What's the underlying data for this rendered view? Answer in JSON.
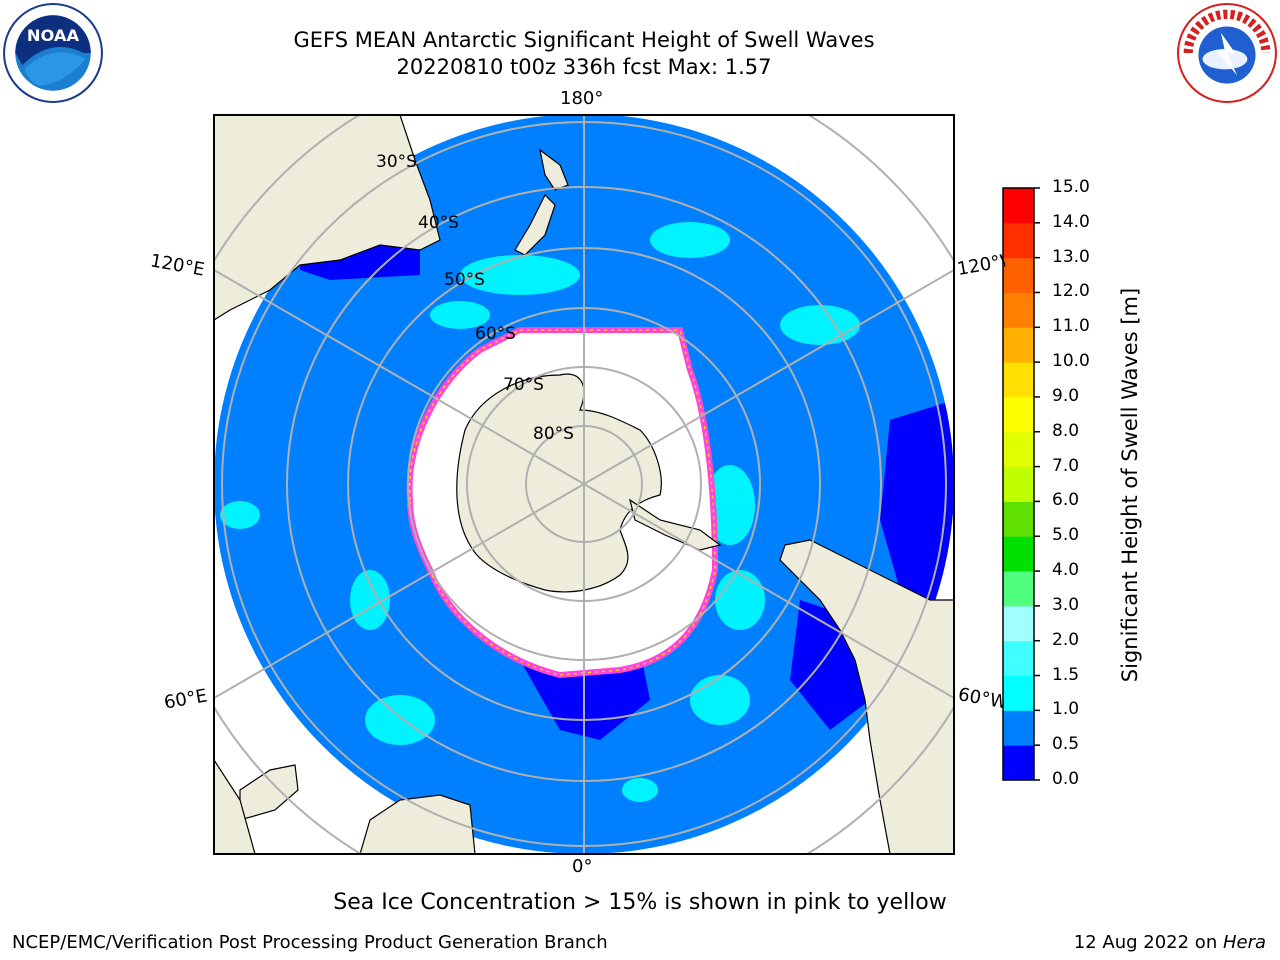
{
  "header": {
    "title_line1": "GEFS MEAN Antarctic Significant Height of Swell Waves",
    "title_line2": "20220810 t00z 336h fcst   Max: 1.57"
  },
  "logos": {
    "left": {
      "text": "NOAA",
      "icon": "noaa-logo"
    },
    "right": {
      "text": "NATIONAL WEATHER SERVICE",
      "icon": "nws-logo"
    }
  },
  "map": {
    "longitude_labels": {
      "top": "180°",
      "bottom": "0°",
      "upper_left": "120°E",
      "upper_right": "120°W",
      "lower_left": "60°E",
      "lower_right": "60°W"
    },
    "latitude_labels": [
      "30°S",
      "40°S",
      "50°S",
      "60°S",
      "70°S",
      "80°S"
    ],
    "colors": {
      "ocean_low": "#0080ff",
      "ocean_lowest": "#0000ff",
      "land": "#eeecdb",
      "sea_ice": "#ffffff",
      "ice_edge": "#ff44dd",
      "grid": "#b0b0b0"
    }
  },
  "colorbar": {
    "label": "Significant Height of Swell Waves [m]",
    "ticks": [
      "0.0",
      "0.5",
      "1.0",
      "1.5",
      "2.0",
      "3.0",
      "4.0",
      "5.0",
      "6.0",
      "7.0",
      "8.0",
      "9.0",
      "10.0",
      "11.0",
      "12.0",
      "13.0",
      "14.0",
      "15.0"
    ],
    "colors": [
      "#0000ff",
      "#0080ff",
      "#00ffff",
      "#40ffff",
      "#a0ffff",
      "#50ff80",
      "#00e000",
      "#60e000",
      "#c0ff00",
      "#e0ff00",
      "#ffff00",
      "#ffe000",
      "#ffb000",
      "#ff8000",
      "#ff6000",
      "#ff3000",
      "#ff0000"
    ]
  },
  "footer": {
    "ice_note": "Sea Ice Concentration > 15% is shown in pink to yellow",
    "left": "NCEP/EMC/Verification Post Processing Product Generation Branch",
    "right_date": "12 Aug 2022 on ",
    "right_host": "Hera"
  }
}
